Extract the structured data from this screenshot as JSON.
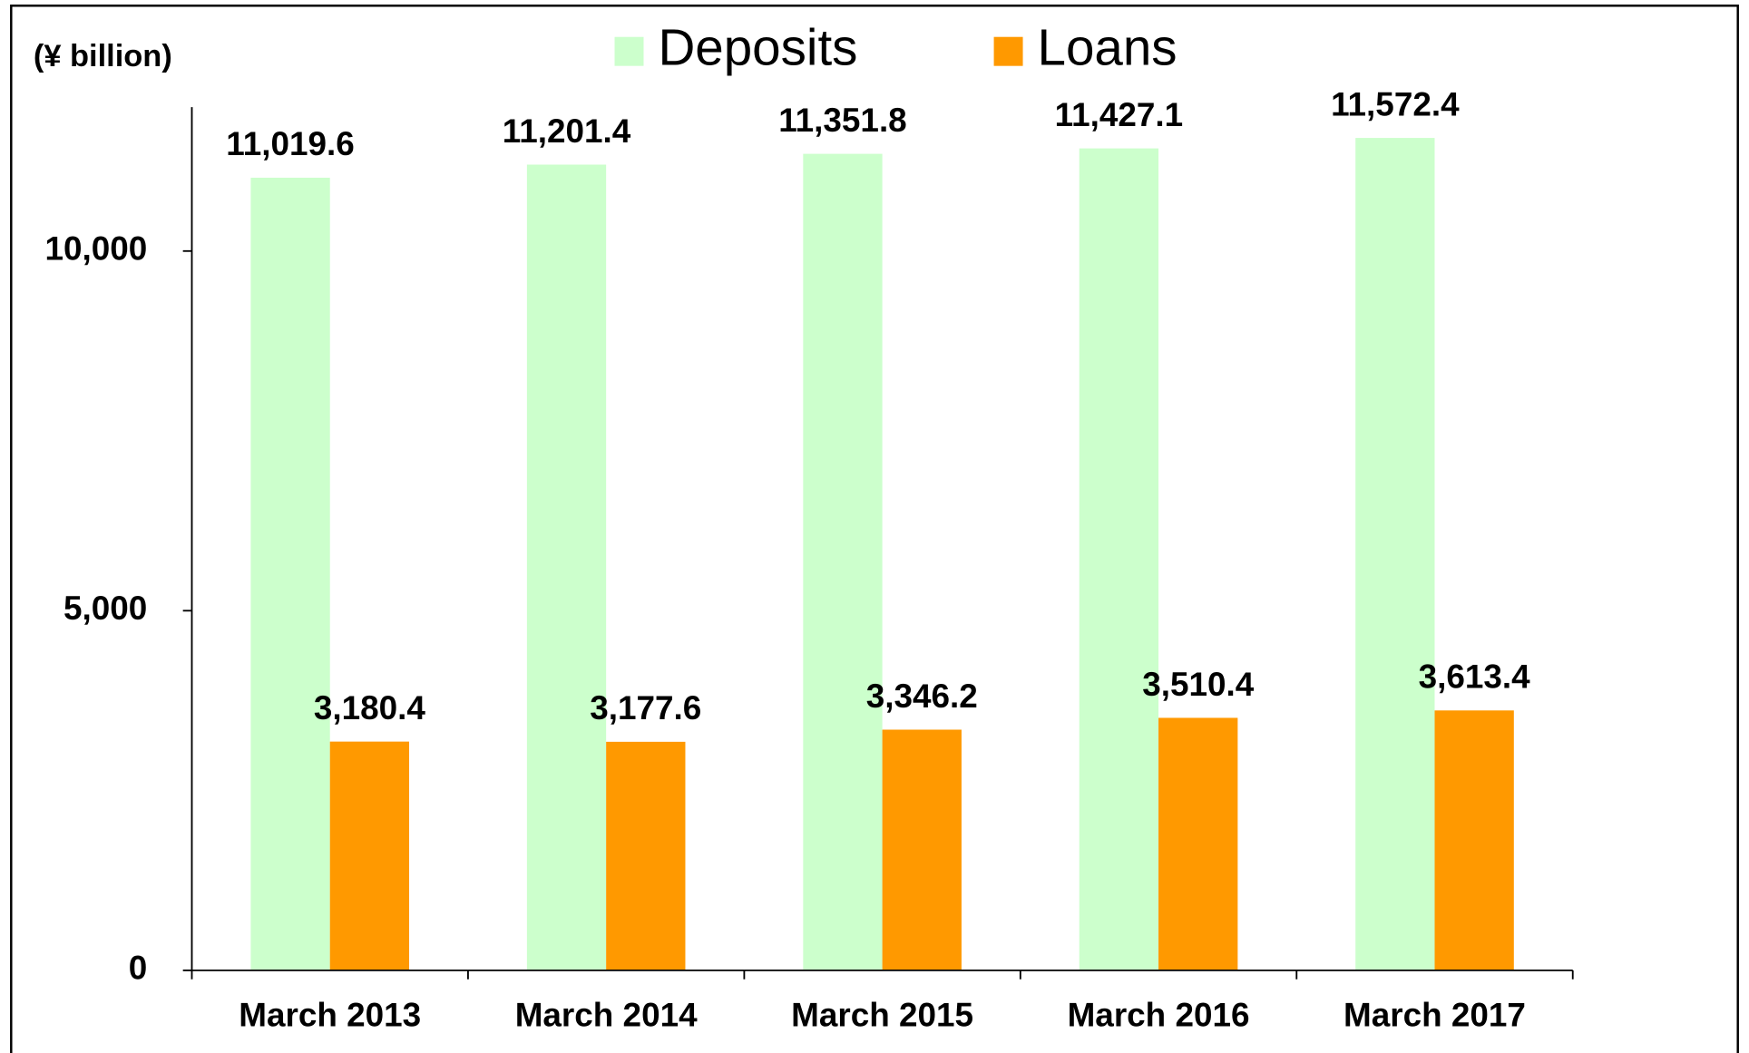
{
  "chart_data": {
    "type": "bar",
    "y_label": "(¥ billion)",
    "categories": [
      "March 2013",
      "March 2014",
      "March 2015",
      "March 2016",
      "March 2017"
    ],
    "series": [
      {
        "name": "Deposits",
        "color": "#ccffcc",
        "values": [
          11019.6,
          11201.4,
          11351.8,
          11427.1,
          11572.4
        ],
        "value_labels": [
          "11,019.6",
          "11,201.4",
          "11,351.8",
          "11,427.1",
          "11,572.4"
        ]
      },
      {
        "name": "Loans",
        "color": "#ff9900",
        "values": [
          3180.4,
          3177.6,
          3346.2,
          3510.4,
          3613.4
        ],
        "value_labels": [
          "3,180.4",
          "3,177.6",
          "3,346.2",
          "3,510.4",
          "3,613.4"
        ]
      }
    ],
    "ylim": [
      0,
      12000
    ],
    "yticks": [
      0,
      {
        "value": 5000,
        "label": "5,000"
      },
      {
        "value": 10000,
        "label": "10,000"
      }
    ],
    "legend": "top"
  }
}
